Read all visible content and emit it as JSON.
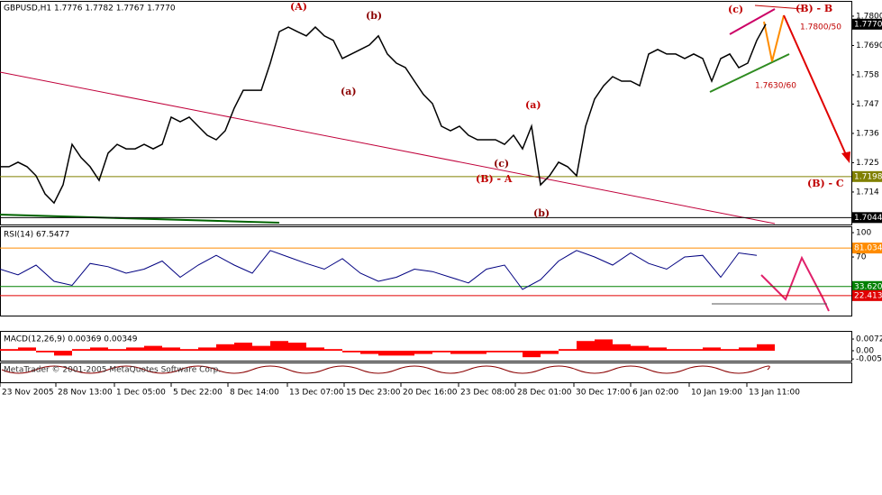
{
  "chart_data": [
    {
      "type": "line",
      "title": "GBPUSD,H1  1.7776 1.7782 1.7767 1.7770",
      "color": "#000000",
      "x": [
        0,
        1,
        2,
        3,
        4,
        5,
        6,
        7,
        8,
        9,
        10,
        11,
        12,
        13,
        14,
        15,
        16,
        17,
        18,
        19,
        20,
        21,
        22,
        23,
        24,
        25,
        26,
        27,
        28,
        29,
        30,
        31,
        32,
        33,
        34,
        35,
        36,
        37,
        38,
        39,
        40,
        41,
        42,
        43,
        44,
        45,
        46,
        47,
        48,
        49,
        50,
        51,
        52,
        53,
        54,
        55,
        56,
        57,
        58,
        59,
        60,
        61,
        62,
        63,
        64,
        65,
        66,
        67,
        68,
        69,
        70,
        71,
        72,
        73,
        74,
        75,
        76,
        77,
        78,
        79,
        80,
        81,
        82,
        83,
        84,
        85
      ],
      "values": [
        1.7235,
        1.7235,
        1.7252,
        1.7235,
        1.7201,
        1.7133,
        1.7099,
        1.7167,
        1.7319,
        1.7269,
        1.7235,
        1.7184,
        1.7286,
        1.7319,
        1.7302,
        1.7302,
        1.7319,
        1.7302,
        1.7319,
        1.7421,
        1.7404,
        1.7421,
        1.7387,
        1.7353,
        1.7336,
        1.737,
        1.7455,
        1.7522,
        1.7522,
        1.7522,
        1.7624,
        1.7742,
        1.7759,
        1.7742,
        1.7726,
        1.7759,
        1.7726,
        1.7709,
        1.7641,
        1.7658,
        1.7675,
        1.7692,
        1.7726,
        1.7658,
        1.7624,
        1.7607,
        1.7556,
        1.7506,
        1.7472,
        1.7387,
        1.737,
        1.7387,
        1.7353,
        1.7336,
        1.7336,
        1.7336,
        1.7319,
        1.7353,
        1.7302,
        1.7387,
        1.7167,
        1.7201,
        1.7252,
        1.7235,
        1.7201,
        1.7387,
        1.7489,
        1.7539,
        1.7573,
        1.7556,
        1.7556,
        1.7539,
        1.7658,
        1.7675,
        1.7658,
        1.7658,
        1.7641,
        1.7658,
        1.7641,
        1.7556,
        1.7641,
        1.7658,
        1.7607,
        1.7624,
        1.7709,
        1.777
      ],
      "xlim": [
        0,
        94.5
      ],
      "ylim": [
        1.7018,
        1.7854
      ],
      "yticks": [
        {
          "value": 1.78,
          "label": "1.7800"
        },
        {
          "value": 1.769,
          "label": "1.7690"
        },
        1.758,
        1.747,
        1.736,
        1.725,
        1.714
      ],
      "levels": [
        {
          "value": 1.777,
          "label": "1.7770"
        },
        1.7198,
        1.7044
      ],
      "xticks": [
        {
          "value": 0,
          "label": "23 Nov 2005"
        },
        {
          "value": 6.2,
          "label": "28 Nov 13:00"
        },
        {
          "value": 12.7,
          "label": "1 Dec 05:00"
        },
        {
          "value": 19,
          "label": "5 Dec 22:00"
        },
        {
          "value": 25.3,
          "label": "8 Dec 14:00"
        },
        {
          "value": 31.9,
          "label": "13 Dec 07:00"
        },
        {
          "value": 38.2,
          "label": "15 Dec 23:00"
        },
        {
          "value": 44.5,
          "label": "20 Dec 16:00"
        },
        {
          "value": 50.9,
          "label": "23 Dec 08:00"
        },
        {
          "value": 57.2,
          "label": "28 Dec 01:00"
        },
        {
          "value": 63.7,
          "label": "30 Dec 17:00"
        },
        {
          "value": 70,
          "label": "6 Jan 02:00"
        },
        {
          "value": 76.5,
          "label": "10 Jan 19:00"
        },
        {
          "value": 82.9,
          "label": "13 Jan 11:00"
        }
      ],
      "annotations": [
        "(A)",
        "(b)",
        "(a)",
        "(c)",
        "(B) - A",
        "(b)",
        "(a)",
        "(c)",
        "(B) - B",
        "1.7800/50",
        "1.7630/60",
        "(B) - C"
      ]
    },
    {
      "type": "line",
      "title": "RSI(14) 67.5477",
      "color": "#000080",
      "x": [
        0,
        2,
        4,
        6,
        8,
        10,
        12,
        14,
        16,
        18,
        20,
        22,
        24,
        26,
        28,
        30,
        32,
        34,
        36,
        38,
        40,
        42,
        44,
        46,
        48,
        50,
        52,
        54,
        56,
        58,
        60,
        62,
        64,
        66,
        68,
        70,
        72,
        74,
        76,
        78,
        80,
        82,
        84
      ],
      "values": [
        55,
        48,
        60,
        40,
        35,
        62,
        58,
        50,
        55,
        65,
        45,
        60,
        72,
        60,
        50,
        78,
        70,
        62,
        55,
        68,
        50,
        40,
        45,
        55,
        52,
        45,
        38,
        55,
        60,
        30,
        42,
        65,
        78,
        70,
        60,
        75,
        62,
        55,
        70,
        72,
        45,
        75,
        72
      ],
      "xlim": [
        0,
        94.5
      ],
      "ylim": [
        -2.2,
        106.7
      ],
      "yticks": [
        100,
        70
      ],
      "levels": [
        {
          "value": 81.0345,
          "label": "81.0345"
        },
        {
          "value": 33.6207,
          "label": "33.6207"
        },
        {
          "value": 22.4138,
          "label": "22.4138"
        }
      ]
    },
    {
      "type": "bar",
      "title": "MACD(12,26,9) 0.00369 0.00349",
      "color": "#ff0000",
      "x": [
        0,
        2,
        4,
        6,
        8,
        10,
        12,
        14,
        16,
        18,
        20,
        22,
        24,
        26,
        28,
        30,
        32,
        34,
        36,
        38,
        40,
        42,
        44,
        46,
        48,
        50,
        52,
        54,
        56,
        58,
        60,
        62,
        64,
        66,
        68,
        70,
        72,
        74,
        76,
        78,
        80,
        82,
        84
      ],
      "values": [
        0.001,
        0.002,
        -0.001,
        -0.003,
        0.001,
        0.002,
        0.001,
        0.002,
        0.003,
        0.002,
        0.001,
        0.002,
        0.004,
        0.005,
        0.003,
        0.006,
        0.005,
        0.002,
        0.001,
        -0.001,
        -0.002,
        -0.003,
        -0.003,
        -0.002,
        -0.001,
        -0.002,
        -0.002,
        -0.001,
        -0.001,
        -0.004,
        -0.002,
        0.001,
        0.006,
        0.007,
        0.004,
        0.003,
        0.002,
        0.001,
        0.001,
        0.002,
        0.001,
        0.002,
        0.004
      ],
      "xlim": [
        0,
        94.5
      ],
      "ylim": [
        -0.0067,
        0.0117
      ],
      "yticks": [
        0.00722,
        {
          "value": 0,
          "label": "0.00"
        },
        -0.0051
      ]
    }
  ],
  "watermark": "MetaTrader © 2001-2005 MetaQuotes Software Corp."
}
